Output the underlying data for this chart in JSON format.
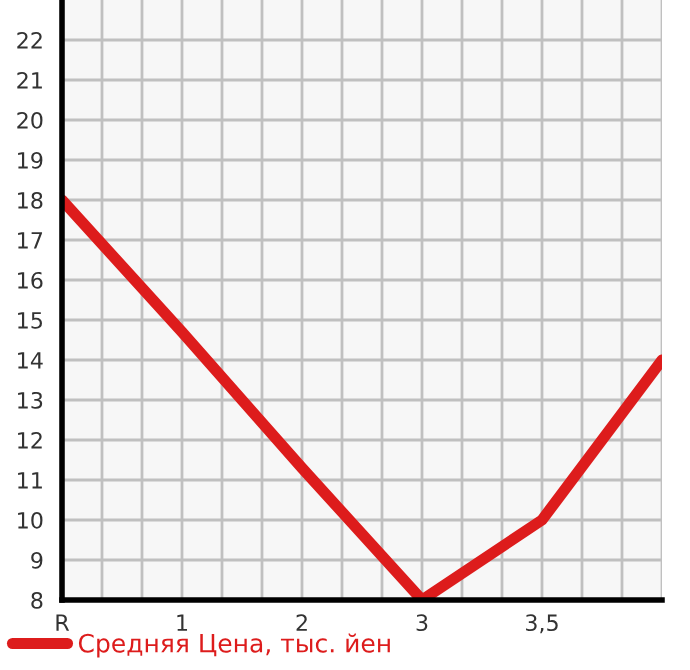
{
  "chart_data": {
    "type": "line",
    "categories": [
      "R",
      "1",
      "2",
      "3",
      "3,5",
      null
    ],
    "series": [
      {
        "name": "Средняя Цена, тыс. йен",
        "color": "#dd1c1c",
        "values": [
          18,
          14.7,
          11.3,
          8,
          10,
          14
        ]
      }
    ],
    "ylim": [
      8,
      23
    ],
    "yticks": [
      8,
      9,
      10,
      11,
      12,
      13,
      14,
      15,
      16,
      17,
      18,
      19,
      20,
      21,
      22
    ],
    "grid": true,
    "legend": "bottom left",
    "marker": "none",
    "line_style": "solid"
  }
}
